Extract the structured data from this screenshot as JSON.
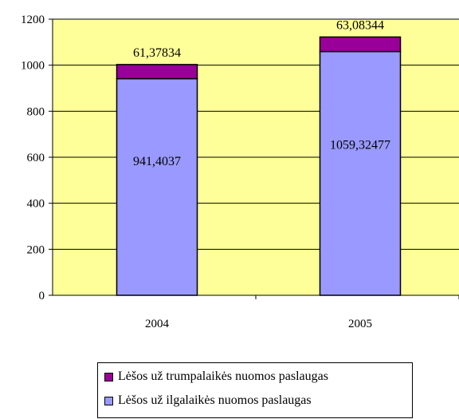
{
  "chart_data": {
    "type": "bar",
    "stacked": true,
    "categories": [
      "2004",
      "2005"
    ],
    "series": [
      {
        "name": "Lėšos už ilgalaikės nuomos paslaugas",
        "values": [
          941.4037,
          1059.32477
        ],
        "labels": [
          "941,4037",
          "1059,32477"
        ],
        "color": "#9999ff"
      },
      {
        "name": "Lėšos už trumpalaikės nuomos paslaugas",
        "values": [
          61.37834,
          63.08344
        ],
        "labels": [
          "61,37834",
          "63,08344"
        ],
        "color": "#990099"
      }
    ],
    "ylim": [
      0,
      1200
    ],
    "yticks": [
      0,
      200,
      400,
      600,
      800,
      1000,
      1200
    ],
    "grid": true,
    "title": "",
    "xlabel": "",
    "ylabel": "",
    "legend_position": "bottom",
    "plot_background": "#ffff99"
  },
  "legend": {
    "items": [
      {
        "label": "Lėšos už trumpalaikės nuomos paslaugas",
        "color": "#990099"
      },
      {
        "label": "Lėšos už ilgalaikės nuomos paslaugas",
        "color": "#9999ff"
      }
    ]
  }
}
